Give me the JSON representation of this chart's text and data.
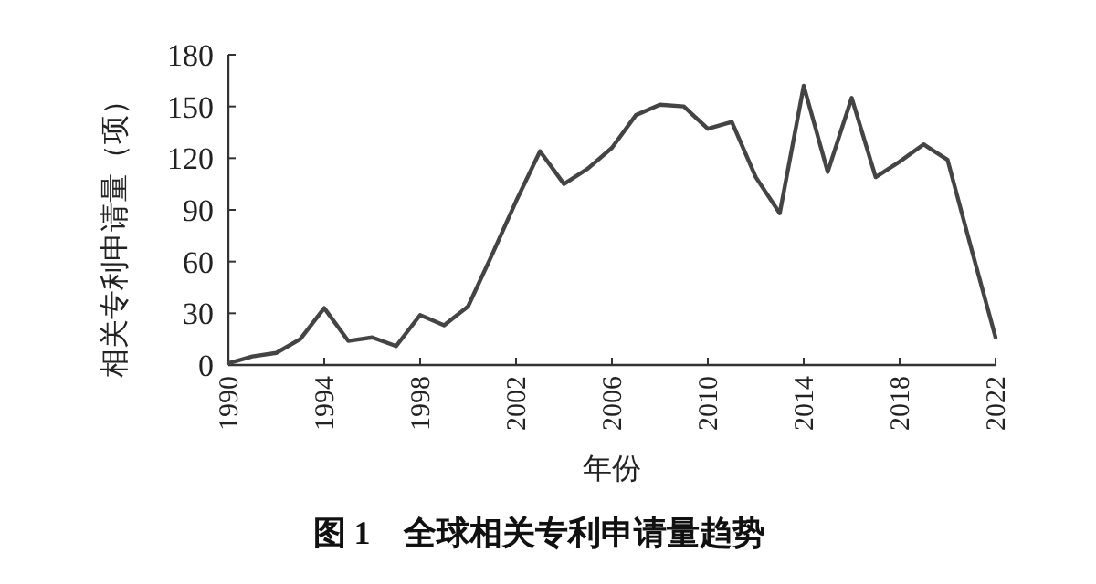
{
  "chart_data": {
    "type": "line",
    "title": "图 1　全球相关专利申请量趋势",
    "xlabel": "年份",
    "ylabel": "相关专利申请量（项）",
    "x": [
      1990,
      1991,
      1992,
      1993,
      1994,
      1995,
      1996,
      1997,
      1998,
      1999,
      2000,
      2001,
      2002,
      2003,
      2004,
      2005,
      2006,
      2007,
      2008,
      2009,
      2010,
      2011,
      2012,
      2013,
      2014,
      2015,
      2016,
      2017,
      2018,
      2019,
      2020,
      2021,
      2022
    ],
    "series": [
      {
        "color": "#444444",
        "values": [
          1,
          5,
          7,
          15,
          33,
          14,
          16,
          11,
          29,
          23,
          34,
          64,
          95,
          124,
          105,
          114,
          126,
          145,
          151,
          150,
          137,
          141,
          109,
          88,
          162,
          112,
          155,
          109,
          118,
          128,
          119,
          67,
          16
        ]
      }
    ],
    "xlim": [
      1990,
      2022
    ],
    "xticks": [
      1990,
      1994,
      1998,
      2002,
      2006,
      2010,
      2014,
      2018,
      2022
    ],
    "ylim": [
      0,
      180
    ],
    "yticks": [
      0,
      30,
      60,
      90,
      120,
      150,
      180
    ],
    "grid": false,
    "marker": "none",
    "line_style": "solid"
  }
}
